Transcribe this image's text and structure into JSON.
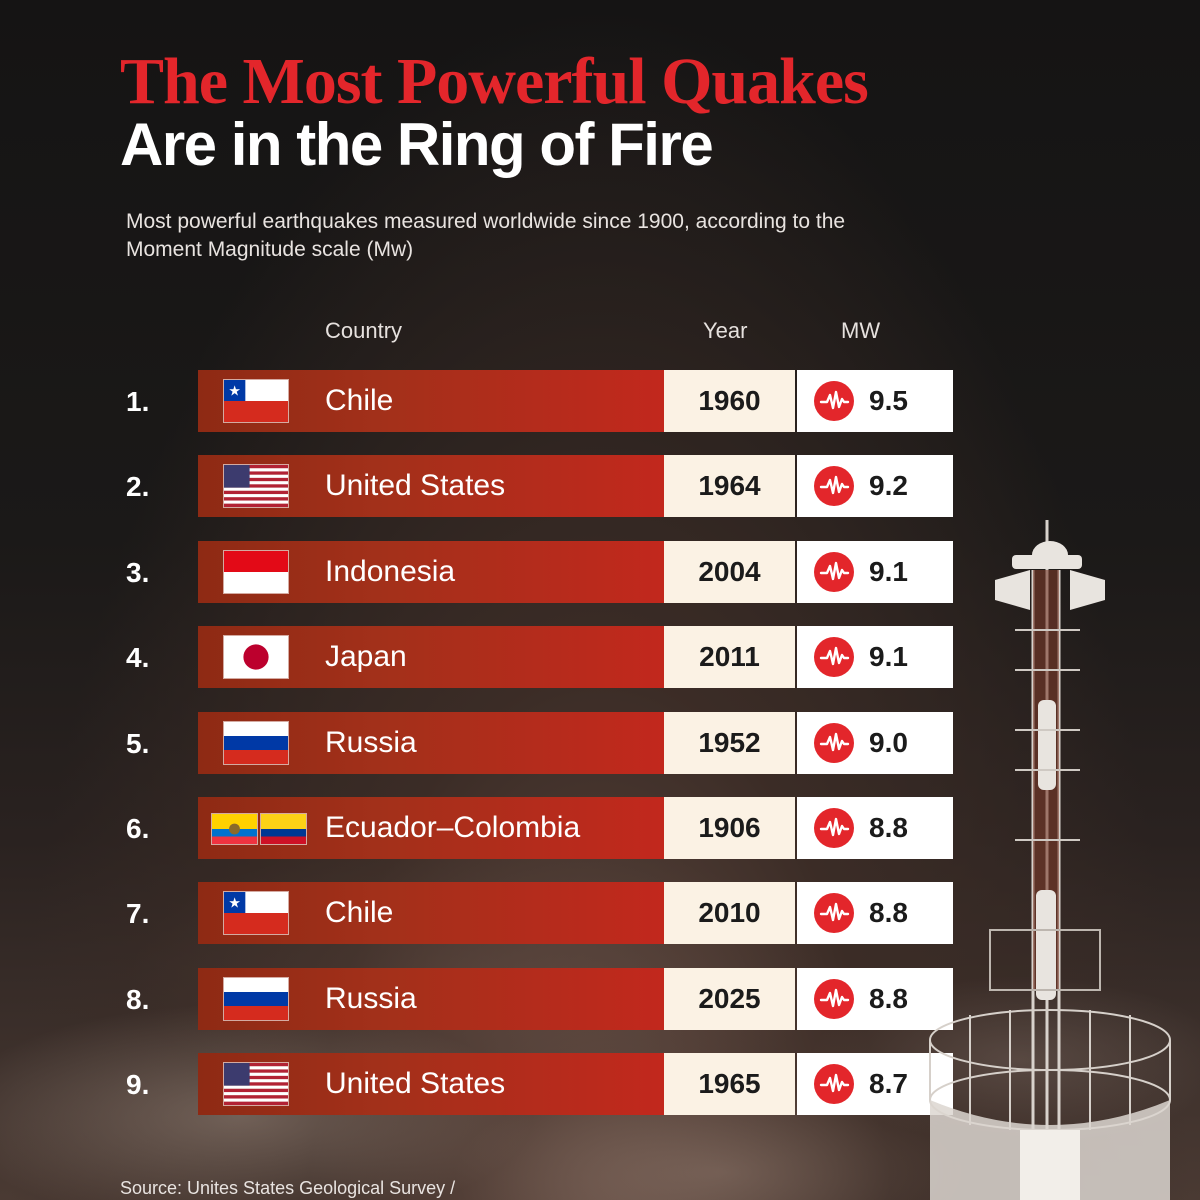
{
  "title_line1": "The Most Powerful Quakes",
  "title_line2": "Are in the Ring of Fire",
  "subtitle": "Most powerful earthquakes measured worldwide since 1900, according to the Moment Magnitude scale (Mw)",
  "columns": {
    "country": "Country",
    "year": "Year",
    "mw": "MW"
  },
  "source": "Source: Unites States Geological Survey /",
  "colors": {
    "title_red": "#e3262b",
    "bar_red": "#b52a1a",
    "year_bg": "#fbf2e4",
    "icon_red": "#e3262b"
  },
  "chart_data": {
    "type": "table",
    "title": "The Most Powerful Quakes Are in the Ring of Fire",
    "columns": [
      "Country",
      "Year",
      "MW"
    ],
    "rows": [
      {
        "rank": "1.",
        "country": "Chile",
        "flag": [
          "chile-flag-icon"
        ],
        "year": "1960",
        "mw": "9.5"
      },
      {
        "rank": "2.",
        "country": "United States",
        "flag": [
          "usa-flag-icon"
        ],
        "year": "1964",
        "mw": "9.2"
      },
      {
        "rank": "3.",
        "country": "Indonesia",
        "flag": [
          "indonesia-flag-icon"
        ],
        "year": "2004",
        "mw": "9.1"
      },
      {
        "rank": "4.",
        "country": "Japan",
        "flag": [
          "japan-flag-icon"
        ],
        "year": "2011",
        "mw": "9.1"
      },
      {
        "rank": "5.",
        "country": "Russia",
        "flag": [
          "russia-flag-icon"
        ],
        "year": "1952",
        "mw": "9.0"
      },
      {
        "rank": "6.",
        "country": "Ecuador–Colombia",
        "flag": [
          "ecuador-flag-icon",
          "colombia-flag-icon"
        ],
        "year": "1906",
        "mw": "8.8"
      },
      {
        "rank": "7.",
        "country": "Chile",
        "flag": [
          "chile-flag-icon"
        ],
        "year": "2010",
        "mw": "8.8"
      },
      {
        "rank": "8.",
        "country": "Russia",
        "flag": [
          "russia-flag-icon"
        ],
        "year": "2025",
        "mw": "8.8"
      },
      {
        "rank": "9.",
        "country": "United States",
        "flag": [
          "usa-flag-icon"
        ],
        "year": "1965",
        "mw": "8.7"
      }
    ]
  }
}
